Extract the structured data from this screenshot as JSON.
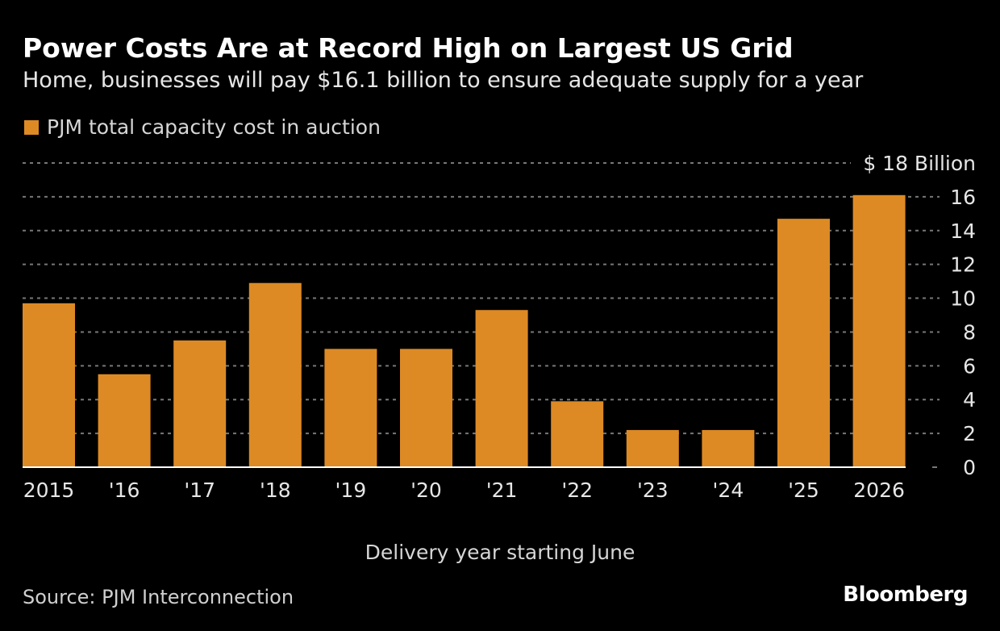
{
  "title": "Power Costs Are at Record High on Largest US Grid",
  "subtitle": "Home, businesses will pay $16.1 billion to ensure adequate supply for a year",
  "source": "Source: PJM Interconnection",
  "logo": "Bloomberg",
  "colors": {
    "bar": "#dd8a24",
    "background": "#000000",
    "grid": "#777777"
  },
  "chart_data": {
    "type": "bar",
    "title": "Power Costs Are at Record High on Largest US Grid",
    "xlabel": "Delivery year starting June",
    "ylabel": "",
    "y_unit_label": "$ 18 Billion",
    "ylim": [
      0,
      18
    ],
    "yticks": [
      0,
      2,
      4,
      6,
      8,
      10,
      12,
      14,
      16,
      18
    ],
    "ytick_labels": [
      "0",
      "2",
      "4",
      "6",
      "8",
      "10",
      "12",
      "14",
      "16",
      "$ 18 Billion"
    ],
    "grid": true,
    "legend_placement": "top-left",
    "categories": [
      "2015",
      "'16",
      "'17",
      "'18",
      "'19",
      "'20",
      "'21",
      "'22",
      "'23",
      "'24",
      "'25",
      "2026"
    ],
    "series": [
      {
        "name": "PJM total capacity cost in auction",
        "values": [
          9.7,
          5.5,
          7.5,
          10.9,
          7.0,
          7.0,
          9.3,
          3.9,
          2.2,
          2.2,
          14.7,
          16.1
        ]
      }
    ]
  }
}
